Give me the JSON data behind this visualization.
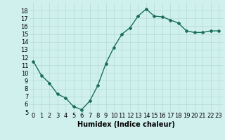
{
  "x": [
    0,
    1,
    2,
    3,
    4,
    5,
    6,
    7,
    8,
    9,
    10,
    11,
    12,
    13,
    14,
    15,
    16,
    17,
    18,
    19,
    20,
    21,
    22,
    23
  ],
  "y": [
    11.5,
    9.7,
    8.7,
    7.3,
    6.8,
    5.7,
    5.3,
    6.4,
    8.4,
    11.2,
    13.3,
    15.0,
    15.8,
    17.3,
    18.2,
    17.3,
    17.2,
    16.8,
    16.4,
    15.4,
    15.2,
    15.2,
    15.4,
    15.4
  ],
  "line_color": "#1a6e5e",
  "marker": "D",
  "marker_size": 2,
  "bg_color": "#d0f0ee",
  "grid_color": "#b8deda",
  "xlabel": "Humidex (Indice chaleur)",
  "xlabel_fontsize": 7,
  "ylim": [
    5,
    19
  ],
  "xlim": [
    -0.5,
    23.5
  ],
  "yticks": [
    5,
    6,
    7,
    8,
    9,
    10,
    11,
    12,
    13,
    14,
    15,
    16,
    17,
    18
  ],
  "xticks": [
    0,
    1,
    2,
    3,
    4,
    5,
    6,
    7,
    8,
    9,
    10,
    11,
    12,
    13,
    14,
    15,
    16,
    17,
    18,
    19,
    20,
    21,
    22,
    23
  ],
  "tick_fontsize": 6,
  "line_width": 1.0
}
